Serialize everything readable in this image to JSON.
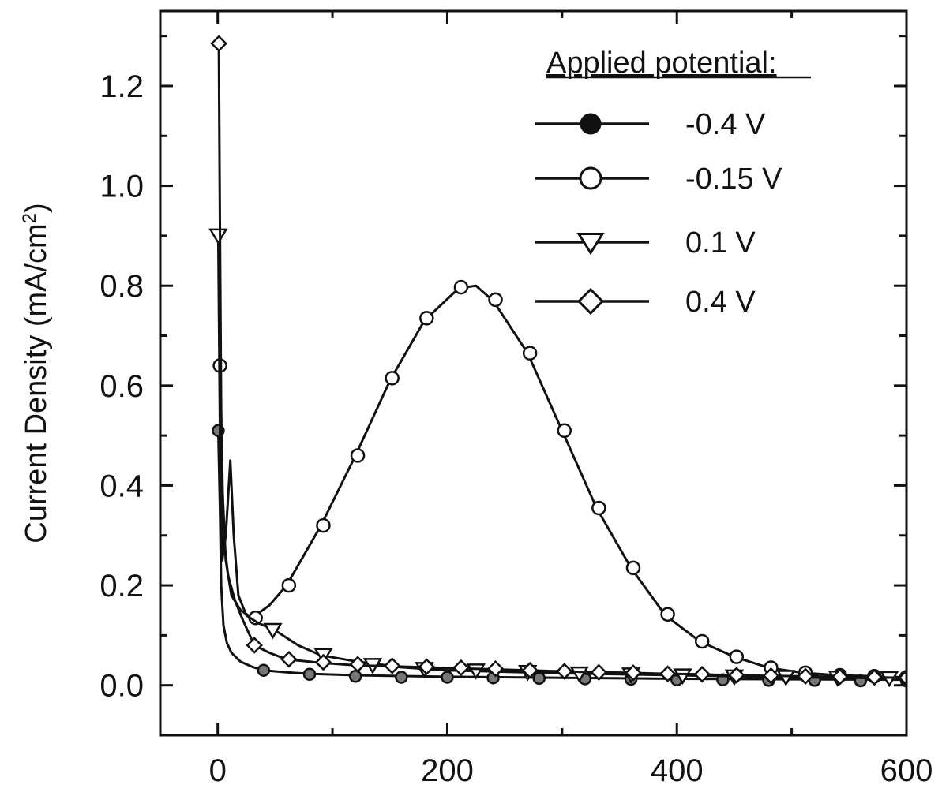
{
  "chart_data": {
    "type": "line",
    "title": "",
    "xlabel": "",
    "ylabel": "Current Density (mA/cm",
    "ylabel_sup": "2",
    "ylabel_close": ")",
    "xlim": [
      -50,
      600
    ],
    "ylim": [
      -0.1,
      1.35
    ],
    "x_ticks": [
      0,
      200,
      400,
      600
    ],
    "x_tick_labels": [
      "0",
      "200",
      "400",
      "600"
    ],
    "y_ticks": [
      0.0,
      0.2,
      0.4,
      0.6,
      0.8,
      1.0,
      1.2
    ],
    "y_tick_labels": [
      "0.0",
      "0.2",
      "0.4",
      "0.6",
      "0.8",
      "1.0",
      "1.2"
    ],
    "grid": false,
    "legend_position": "top-right",
    "legend_title": "Applied potential:",
    "series": [
      {
        "name": "-0.4 V",
        "marker": "filled-circle",
        "line": [
          [
            0.5,
            0.51
          ],
          [
            2,
            0.35
          ],
          [
            3,
            0.2
          ],
          [
            5,
            0.12
          ],
          [
            8,
            0.085
          ],
          [
            12,
            0.065
          ],
          [
            20,
            0.047
          ],
          [
            30,
            0.037
          ],
          [
            40,
            0.03
          ],
          [
            60,
            0.026
          ],
          [
            80,
            0.023
          ],
          [
            120,
            0.02
          ],
          [
            200,
            0.017
          ],
          [
            300,
            0.015
          ],
          [
            400,
            0.013
          ],
          [
            500,
            0.012
          ],
          [
            600,
            0.011
          ]
        ],
        "markers": [
          [
            0.5,
            0.51
          ],
          [
            40,
            0.03
          ],
          [
            80,
            0.022
          ],
          [
            120,
            0.018
          ],
          [
            160,
            0.016
          ],
          [
            200,
            0.016
          ],
          [
            240,
            0.015
          ],
          [
            280,
            0.014
          ],
          [
            320,
            0.013
          ],
          [
            360,
            0.012
          ],
          [
            400,
            0.011
          ],
          [
            440,
            0.011
          ],
          [
            480,
            0.01
          ],
          [
            520,
            0.01
          ],
          [
            560,
            0.009
          ],
          [
            600,
            0.009
          ]
        ]
      },
      {
        "name": "-0.15 V",
        "marker": "open-circle",
        "line": [
          [
            2,
            0.64
          ],
          [
            4,
            0.4
          ],
          [
            7,
            0.25
          ],
          [
            12,
            0.18
          ],
          [
            20,
            0.15
          ],
          [
            30,
            0.135
          ],
          [
            45,
            0.16
          ],
          [
            60,
            0.2
          ],
          [
            90,
            0.32
          ],
          [
            120,
            0.46
          ],
          [
            150,
            0.61
          ],
          [
            180,
            0.73
          ],
          [
            210,
            0.795
          ],
          [
            225,
            0.8
          ],
          [
            240,
            0.77
          ],
          [
            270,
            0.665
          ],
          [
            300,
            0.51
          ],
          [
            330,
            0.355
          ],
          [
            360,
            0.235
          ],
          [
            390,
            0.14
          ],
          [
            420,
            0.088
          ],
          [
            450,
            0.057
          ],
          [
            480,
            0.035
          ],
          [
            510,
            0.025
          ],
          [
            540,
            0.02
          ],
          [
            570,
            0.018
          ],
          [
            600,
            0.016
          ]
        ],
        "markers": [
          [
            2,
            0.64
          ],
          [
            33,
            0.135
          ],
          [
            62,
            0.2
          ],
          [
            92,
            0.32
          ],
          [
            122,
            0.46
          ],
          [
            152,
            0.615
          ],
          [
            182,
            0.735
          ],
          [
            212,
            0.797
          ],
          [
            242,
            0.772
          ],
          [
            272,
            0.665
          ],
          [
            302,
            0.51
          ],
          [
            332,
            0.355
          ],
          [
            362,
            0.235
          ],
          [
            392,
            0.142
          ],
          [
            422,
            0.088
          ],
          [
            452,
            0.057
          ],
          [
            482,
            0.035
          ],
          [
            512,
            0.025
          ],
          [
            542,
            0.02
          ],
          [
            572,
            0.018
          ],
          [
            600,
            0.016
          ]
        ]
      },
      {
        "name": "0.1 V",
        "marker": "open-triangle-down",
        "line": [
          [
            0.5,
            0.9
          ],
          [
            2,
            0.5
          ],
          [
            4,
            0.25
          ],
          [
            7,
            0.3
          ],
          [
            11,
            0.45
          ],
          [
            14,
            0.3
          ],
          [
            18,
            0.18
          ],
          [
            25,
            0.14
          ],
          [
            35,
            0.125
          ],
          [
            50,
            0.11
          ],
          [
            70,
            0.08
          ],
          [
            90,
            0.06
          ],
          [
            120,
            0.048
          ],
          [
            160,
            0.036
          ],
          [
            200,
            0.03
          ],
          [
            250,
            0.027
          ],
          [
            300,
            0.024
          ],
          [
            350,
            0.022
          ],
          [
            400,
            0.02
          ],
          [
            450,
            0.018
          ],
          [
            500,
            0.016
          ],
          [
            550,
            0.015
          ],
          [
            600,
            0.014
          ]
        ],
        "markers": [
          [
            0.5,
            0.9
          ],
          [
            48,
            0.11
          ],
          [
            92,
            0.06
          ],
          [
            135,
            0.04
          ],
          [
            180,
            0.032
          ],
          [
            225,
            0.029
          ],
          [
            270,
            0.026
          ],
          [
            315,
            0.023
          ],
          [
            360,
            0.021
          ],
          [
            405,
            0.019
          ],
          [
            450,
            0.017
          ],
          [
            495,
            0.016
          ],
          [
            540,
            0.015
          ],
          [
            585,
            0.014
          ]
        ]
      },
      {
        "name": "0.4 V",
        "marker": "open-diamond",
        "line": [
          [
            1,
            1.285
          ],
          [
            2,
            0.9
          ],
          [
            3,
            0.55
          ],
          [
            5,
            0.3
          ],
          [
            9,
            0.22
          ],
          [
            15,
            0.17
          ],
          [
            22,
            0.13
          ],
          [
            32,
            0.08
          ],
          [
            45,
            0.065
          ],
          [
            60,
            0.052
          ],
          [
            90,
            0.045
          ],
          [
            120,
            0.04
          ],
          [
            150,
            0.038
          ],
          [
            180,
            0.036
          ],
          [
            210,
            0.034
          ],
          [
            240,
            0.032
          ],
          [
            270,
            0.03
          ],
          [
            300,
            0.028
          ],
          [
            330,
            0.026
          ],
          [
            360,
            0.025
          ],
          [
            390,
            0.023
          ],
          [
            420,
            0.022
          ],
          [
            450,
            0.02
          ],
          [
            480,
            0.019
          ],
          [
            510,
            0.018
          ],
          [
            540,
            0.017
          ],
          [
            570,
            0.016
          ],
          [
            600,
            0.015
          ]
        ],
        "markers": [
          [
            1,
            1.285
          ],
          [
            32,
            0.08
          ],
          [
            62,
            0.052
          ],
          [
            92,
            0.046
          ],
          [
            122,
            0.042
          ],
          [
            152,
            0.039
          ],
          [
            182,
            0.037
          ],
          [
            212,
            0.035
          ],
          [
            242,
            0.033
          ],
          [
            272,
            0.03
          ],
          [
            302,
            0.028
          ],
          [
            332,
            0.026
          ],
          [
            362,
            0.025
          ],
          [
            392,
            0.023
          ],
          [
            422,
            0.022
          ],
          [
            452,
            0.02
          ],
          [
            482,
            0.019
          ],
          [
            512,
            0.018
          ],
          [
            542,
            0.017
          ],
          [
            572,
            0.016
          ],
          [
            600,
            0.015
          ]
        ]
      }
    ]
  }
}
